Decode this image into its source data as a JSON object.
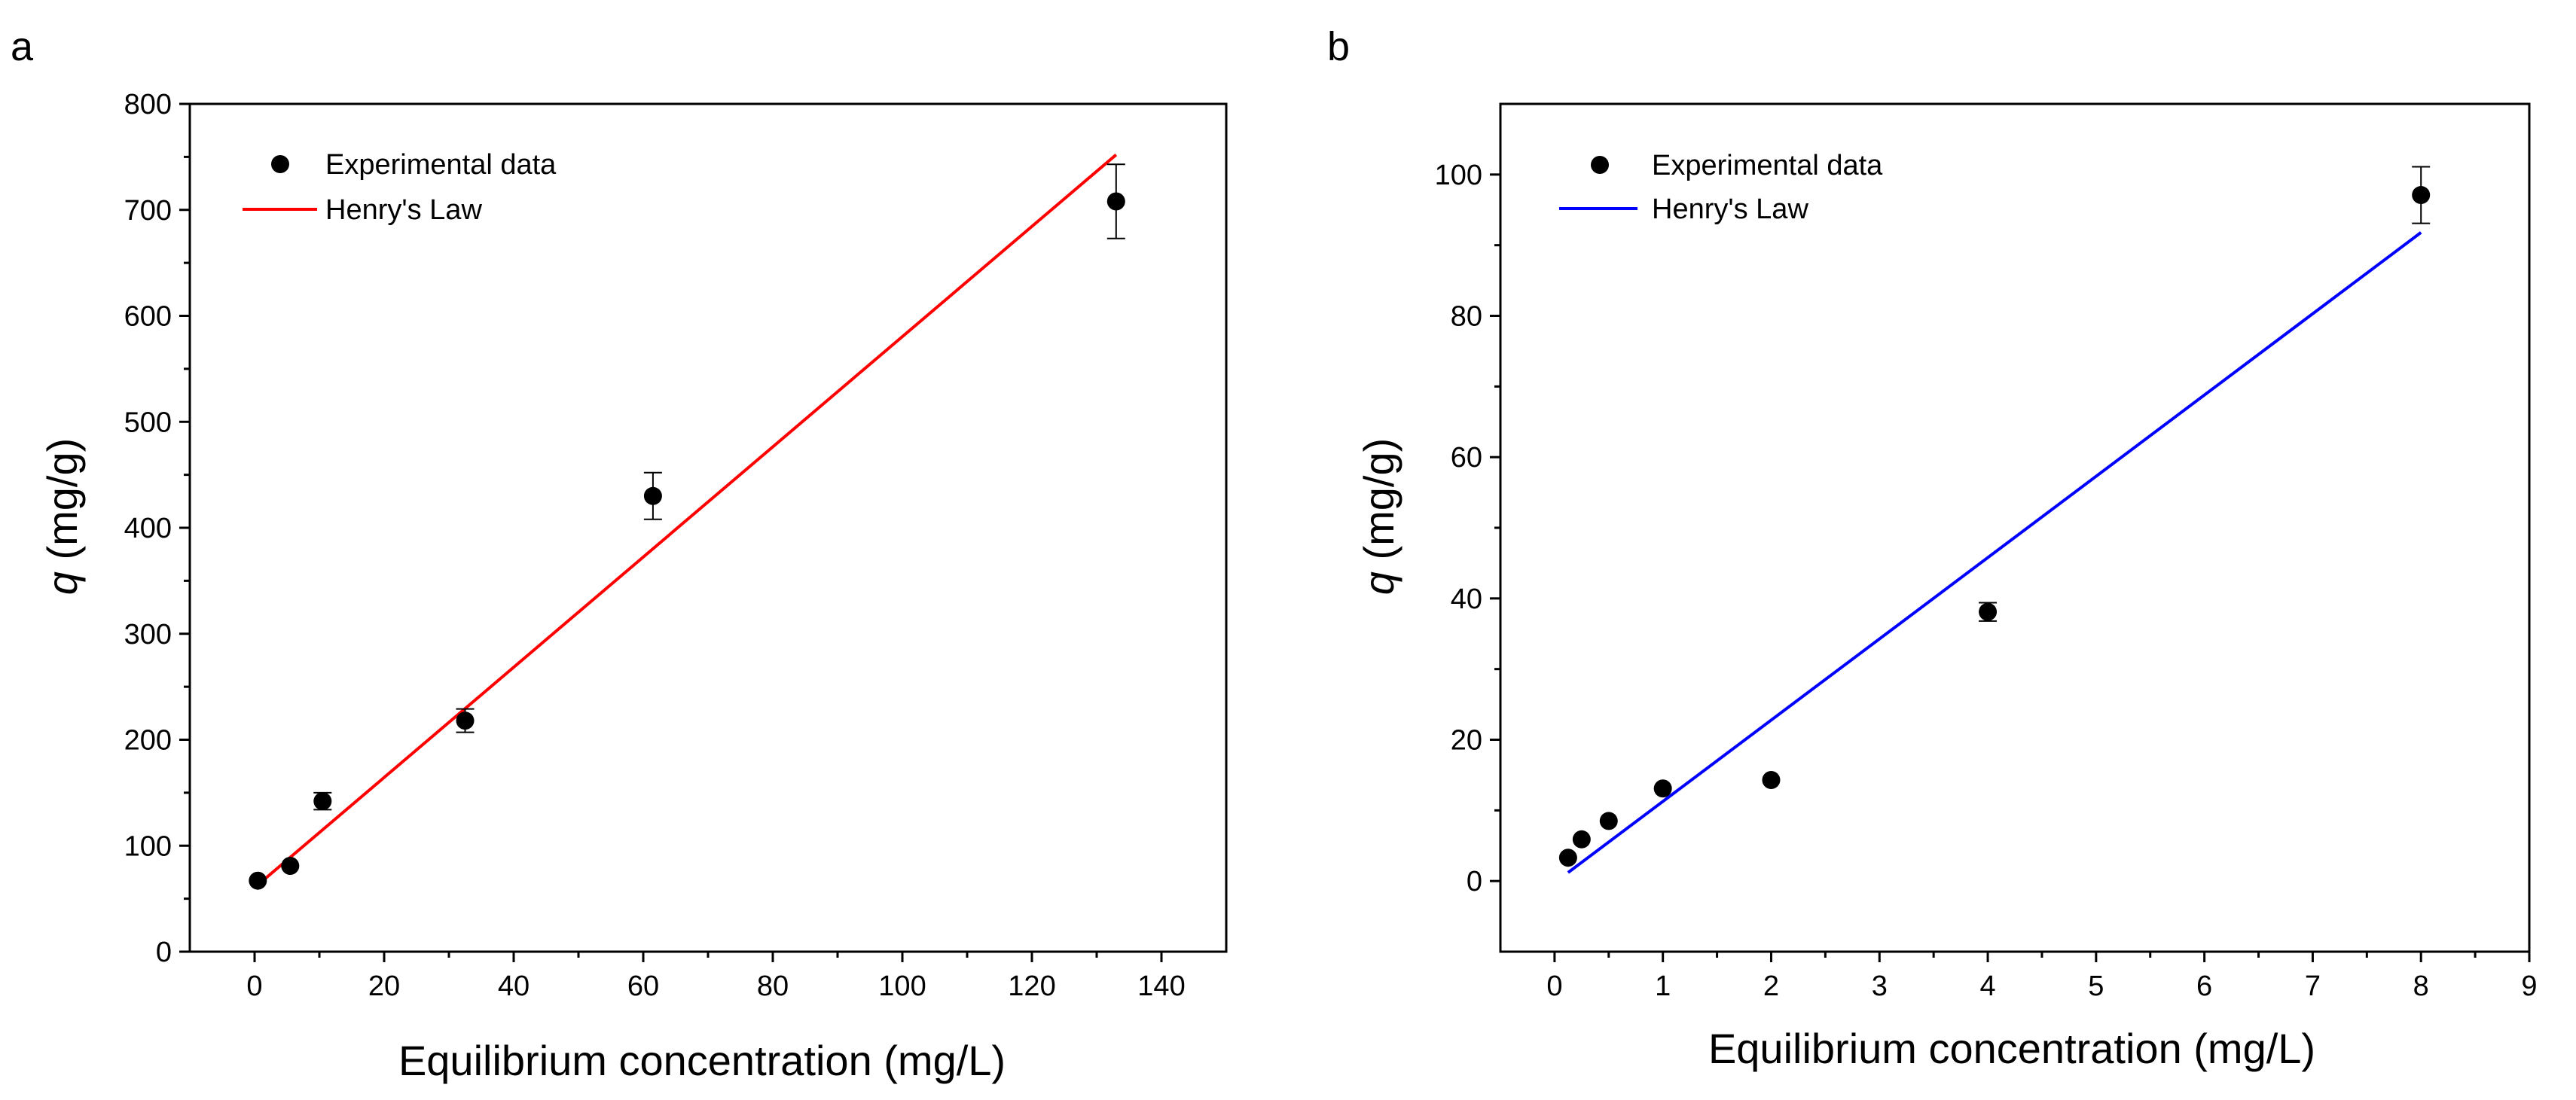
{
  "colors": {
    "axis": "#000000",
    "marker": "#000000",
    "panel_a_fit": "#ff0000",
    "panel_b_fit": "#0000ff"
  },
  "chart_data": [
    {
      "panel": "a",
      "type": "scatter",
      "xlabel": "Equilibrium concentration (mg/L)",
      "ylabel": {
        "symbol": "q",
        "unit": " (mg/g)"
      },
      "xlim": [
        -10,
        150
      ],
      "ylim": [
        0,
        800
      ],
      "xticks": [
        "0",
        "20",
        "40",
        "60",
        "80",
        "100",
        "120",
        "140"
      ],
      "yticks": [
        "0",
        "100",
        "200",
        "300",
        "400",
        "500",
        "600",
        "700",
        "800"
      ],
      "legend": {
        "position": "top-left",
        "scatter_label": "Experimental data",
        "line_label": "Henry's Law"
      },
      "series": [
        {
          "name": "Experimental data",
          "kind": "scatter",
          "points": [
            {
              "x": 0.5,
              "y": 67,
              "err": 0
            },
            {
              "x": 5.5,
              "y": 81,
              "err": 0
            },
            {
              "x": 10.5,
              "y": 142,
              "err": 8
            },
            {
              "x": 32.5,
              "y": 218,
              "err": 11
            },
            {
              "x": 61.5,
              "y": 430,
              "err": 22
            },
            {
              "x": 133,
              "y": 708,
              "err": 35
            }
          ]
        },
        {
          "name": "Henry's Law",
          "kind": "line",
          "color": "#ff0000",
          "x": [
            0.5,
            133
          ],
          "y": [
            63,
            752
          ]
        }
      ]
    },
    {
      "panel": "b",
      "type": "scatter",
      "xlabel": "Equilibrium concentration (mg/L)",
      "ylabel": {
        "symbol": "q",
        "unit": " (mg/g)"
      },
      "xlim": [
        -0.5,
        9
      ],
      "ylim": [
        -10,
        110
      ],
      "xticks": [
        "0",
        "1",
        "2",
        "3",
        "4",
        "5",
        "6",
        "7",
        "8",
        "9"
      ],
      "yticks": [
        "0",
        "20",
        "40",
        "60",
        "80",
        "100"
      ],
      "legend": {
        "position": "top-left",
        "scatter_label": "Experimental data",
        "line_label": "Henry's Law"
      },
      "series": [
        {
          "name": "Experimental data",
          "kind": "scatter",
          "points": [
            {
              "x": 0.125,
              "y": 3.3,
              "err": 0
            },
            {
              "x": 0.25,
              "y": 5.9,
              "err": 0
            },
            {
              "x": 0.5,
              "y": 8.5,
              "err": 0
            },
            {
              "x": 1,
              "y": 13.1,
              "err": 0
            },
            {
              "x": 2,
              "y": 14.3,
              "err": 0
            },
            {
              "x": 4,
              "y": 38.1,
              "err": 1.3
            },
            {
              "x": 8,
              "y": 97.1,
              "err": 4
            }
          ]
        },
        {
          "name": "Henry's Law",
          "kind": "line",
          "color": "#0000ff",
          "x": [
            0.125,
            8
          ],
          "y": [
            1.2,
            91.8
          ]
        }
      ]
    }
  ]
}
